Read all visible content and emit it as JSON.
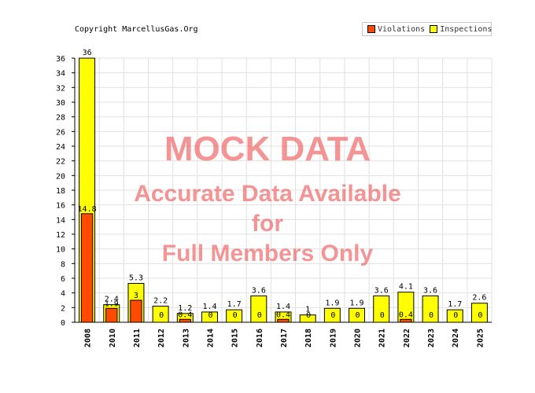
{
  "copyright": "Copyright MarcellusGas.Org",
  "legend": {
    "violations_label": "Violations",
    "inspections_label": "Inspections"
  },
  "watermark": {
    "line1": "MOCK DATA",
    "line2": "Accurate Data Available",
    "line3": "for",
    "line4": "Full Members Only"
  },
  "colors": {
    "violations": "#ff4a00",
    "inspections": "#ffff00",
    "grid": "#e0e0e0",
    "watermark": "#f05a5a"
  },
  "chart_data": {
    "type": "bar",
    "categories": [
      "2008",
      "2010",
      "2011",
      "2012",
      "2013",
      "2014",
      "2015",
      "2016",
      "2017",
      "2018",
      "2019",
      "2020",
      "2021",
      "2022",
      "2023",
      "2024",
      "2025"
    ],
    "series": [
      {
        "name": "Inspections",
        "values": [
          36,
          2.4,
          5.3,
          2.2,
          1.2,
          1.4,
          1.7,
          3.6,
          1.4,
          1,
          1.9,
          1.9,
          3.6,
          4.1,
          3.6,
          1.7,
          2.6
        ]
      },
      {
        "name": "Violations",
        "values": [
          14.8,
          1.9,
          3,
          0,
          0.4,
          0,
          0,
          0,
          0.4,
          0,
          0,
          0,
          0,
          0.4,
          0,
          0,
          0
        ]
      }
    ],
    "ylim": [
      0,
      36
    ],
    "yticks": [
      0,
      2,
      4,
      6,
      8,
      10,
      12,
      14,
      16,
      18,
      20,
      22,
      24,
      26,
      28,
      30,
      32,
      34,
      36
    ],
    "grid": true,
    "legend_position": "top-right"
  }
}
